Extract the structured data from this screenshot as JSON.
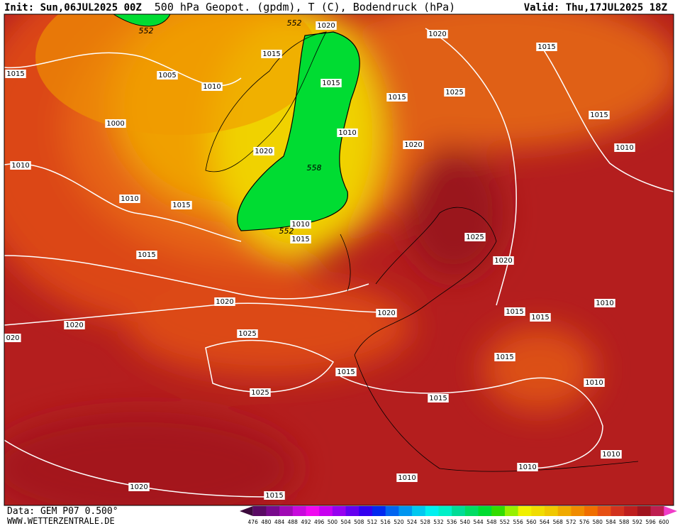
{
  "header": {
    "init": "Init: Sun,06JUL2025 00Z",
    "title": "500 hPa Geopot. (gpdm), T (C), Bodendruck (hPa)",
    "valid": "Valid: Thu,17JUL2025 18Z"
  },
  "footer": {
    "source": "Data: GEM P07 0.500°",
    "website": "WWW.WETTERZENTRALE.DE"
  },
  "isobar_labels": [
    "1015",
    "1005",
    "1010",
    "1000",
    "1010",
    "1010",
    "1015",
    "1015",
    "1020",
    "1020",
    "020",
    "1025",
    "1025",
    "1015",
    "1020",
    "1020",
    "1015",
    "1015",
    "1015",
    "1010",
    "1020",
    "1020",
    "1010",
    "1015",
    "1020",
    "1015",
    "1025",
    "1015",
    "1010",
    "1025",
    "1020",
    "1015",
    "1015",
    "1010",
    "1015",
    "1010",
    "1015",
    "1010",
    "1010",
    "1010",
    "1020",
    "1015"
  ],
  "height_labels": [
    "552",
    "552",
    "558",
    "552"
  ],
  "legend": {
    "ticks": [
      476,
      480,
      484,
      488,
      492,
      496,
      500,
      504,
      508,
      512,
      516,
      520,
      524,
      528,
      532,
      536,
      540,
      544,
      548,
      552,
      556,
      560,
      564,
      568,
      572,
      576,
      580,
      584,
      588,
      592,
      596,
      600
    ],
    "colors": [
      "#3c0a3c",
      "#5a0a64",
      "#780a8c",
      "#a00ab4",
      "#c80adc",
      "#f00af0",
      "#c800f0",
      "#9600f0",
      "#6400f0",
      "#3200f0",
      "#0028f0",
      "#0064f0",
      "#0096f0",
      "#00c8f0",
      "#00f0f0",
      "#00f0c8",
      "#00dc96",
      "#00dc64",
      "#00dc32",
      "#32dc00",
      "#96f000",
      "#f0f000",
      "#f0dc00",
      "#f0c800",
      "#f0aa00",
      "#f08c00",
      "#f06e00",
      "#e65014",
      "#d2321e",
      "#be1e1e",
      "#a0141e",
      "#be1e50",
      "#f03cc8"
    ]
  }
}
